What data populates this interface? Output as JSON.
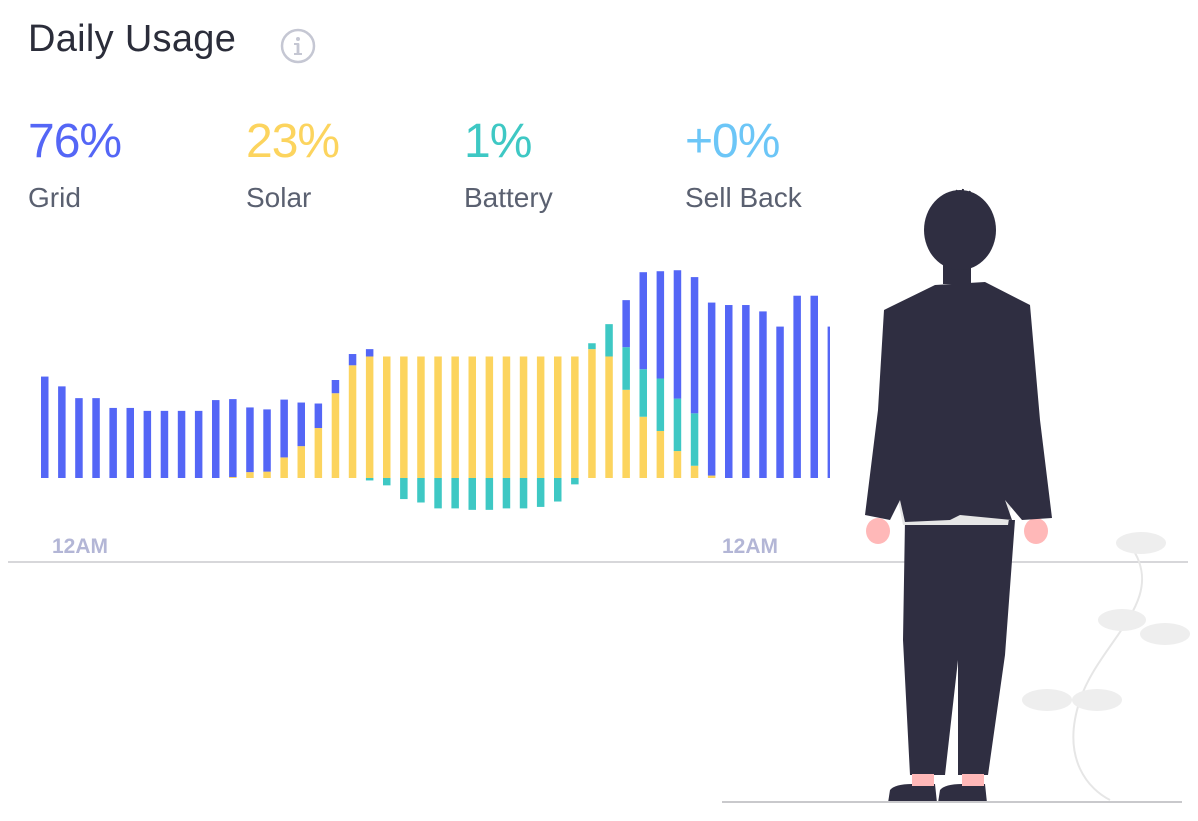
{
  "header": {
    "title": "Daily Usage",
    "info_icon": "info-icon"
  },
  "stats": [
    {
      "key": "grid",
      "value": "76%",
      "label": "Grid",
      "color": "#5466f6"
    },
    {
      "key": "solar",
      "value": "23%",
      "label": "Solar",
      "color": "#fcd45e"
    },
    {
      "key": "battery",
      "value": "1%",
      "label": "Battery",
      "color": "#3ec8c4"
    },
    {
      "key": "sellback",
      "value": "+0%",
      "label": "Sell Back",
      "color": "#6cc6f7"
    }
  ],
  "chart_data": {
    "type": "bar",
    "title": "",
    "xlabel": "",
    "ylabel": "",
    "x_tick_labels": [
      "12AM",
      "12AM"
    ],
    "categories": [
      "1",
      "2",
      "3",
      "4",
      "5",
      "6",
      "7",
      "8",
      "9",
      "10",
      "11",
      "12",
      "13",
      "14",
      "15",
      "16",
      "17",
      "18",
      "19",
      "20",
      "21",
      "22",
      "23",
      "24",
      "25",
      "26",
      "27",
      "28",
      "29",
      "30",
      "31",
      "32",
      "33",
      "34",
      "35",
      "36",
      "37",
      "38",
      "39",
      "40",
      "41",
      "42",
      "43",
      "44",
      "45",
      "46",
      "47",
      "48"
    ],
    "series": [
      {
        "key": "solar",
        "color": "#fcd45e",
        "values": [
          0,
          0,
          0,
          0,
          0,
          0,
          0,
          0,
          0,
          0,
          0,
          0.2,
          1.2,
          1.3,
          4.2,
          6.5,
          10.2,
          17.3,
          23,
          24.8,
          24.8,
          24.8,
          24.8,
          24.8,
          24.8,
          24.8,
          24.8,
          24.8,
          24.8,
          24.8,
          24.8,
          24.8,
          26.3,
          24.8,
          18,
          12.5,
          9.6,
          5.5,
          2.5,
          0.5,
          0,
          0,
          0,
          0,
          0,
          0,
          0,
          0
        ]
      },
      {
        "key": "battery",
        "color": "#3ec8c4",
        "values": [
          0,
          0,
          0,
          0,
          0,
          0,
          0,
          0,
          0,
          0,
          0,
          0,
          0,
          0,
          0,
          0,
          0,
          0,
          0,
          -0.5,
          -1.5,
          -4.3,
          -5,
          -6.2,
          -6.2,
          -6.5,
          -6.5,
          -6.2,
          -6.2,
          -5.9,
          -4.8,
          -1.3,
          1.2,
          6.6,
          8.7,
          9.7,
          10.7,
          10.7,
          10.7,
          0,
          0,
          0,
          0,
          0,
          0,
          0,
          0,
          0
        ]
      },
      {
        "key": "grid",
        "color": "#5466f6",
        "values": [
          20.7,
          18.7,
          16.3,
          16.3,
          14.3,
          14.3,
          13.7,
          13.7,
          13.7,
          13.7,
          15.9,
          15.9,
          13.2,
          12.7,
          11.8,
          8.9,
          5,
          2.7,
          2.3,
          1.5,
          0,
          0,
          0,
          0,
          0,
          0,
          0,
          0,
          0,
          0,
          0,
          0,
          0,
          0,
          9.6,
          19.8,
          21.9,
          26.2,
          27.8,
          35.3,
          35.3,
          35.3,
          34,
          30.9,
          37.2,
          37.2,
          30.9,
          30.9
        ]
      }
    ],
    "ylim": [
      -10,
      50
    ]
  },
  "illustration": {
    "person_icon": "person-illustration",
    "plant_icon": "plant-illustration"
  }
}
